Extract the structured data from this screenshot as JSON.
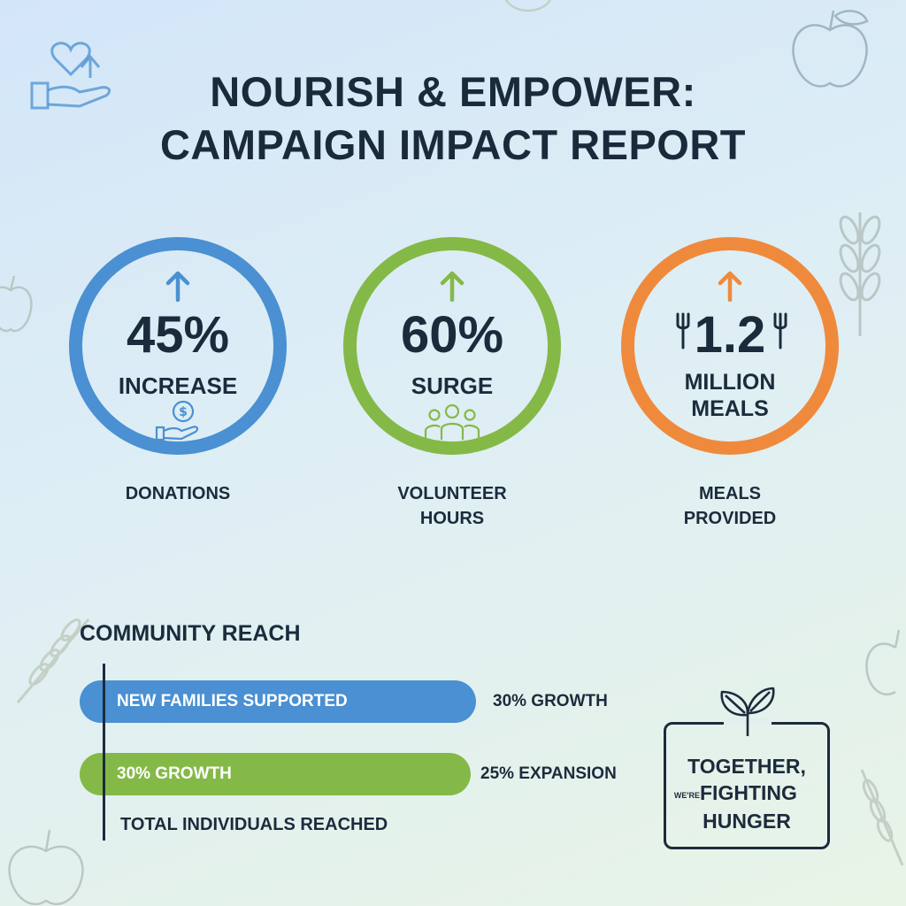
{
  "header": {
    "title_line1": "NOURISH & EMPOWER:",
    "title_line2": "CAMPAIGN IMPACT REPORT"
  },
  "metrics": [
    {
      "value": "45%",
      "label": "INCREASE",
      "caption_line1": "DONATIONS",
      "color": "#4a90d2",
      "icon": "hand-coin-icon"
    },
    {
      "value": "60%",
      "label": "SURGE",
      "caption_line1": "VOLUNTEER",
      "caption_line2": "HOURS",
      "color": "#84b947",
      "icon": "people-group-icon"
    },
    {
      "value": "1.2",
      "label_line1": "MILLION",
      "label_line2": "MEALS",
      "caption_line1": "MEALS",
      "caption_line2": "PROVIDED",
      "color": "#ef8a3d",
      "icon": "fork-knife-icon"
    }
  ],
  "community_reach": {
    "title": "COMMUNITY REACH",
    "bars": [
      {
        "label": "NEW FAMILIES SUPPORTED",
        "note": "30% GROWTH",
        "color": "#4a90d2"
      },
      {
        "label": "30% GROWTH",
        "note": "25% EXPANSION",
        "color": "#84b947"
      }
    ],
    "footer": "TOTAL INDIVIDUALS REACHED"
  },
  "badge": {
    "line1": "TOGETHER,",
    "small": "WE'RE",
    "line2": "FIGHTING",
    "line3": "HUNGER",
    "icon": "leaf-sprout-icon"
  },
  "decorations": [
    "heart-hand-icon",
    "apple-icon",
    "wheat-icon"
  ]
}
